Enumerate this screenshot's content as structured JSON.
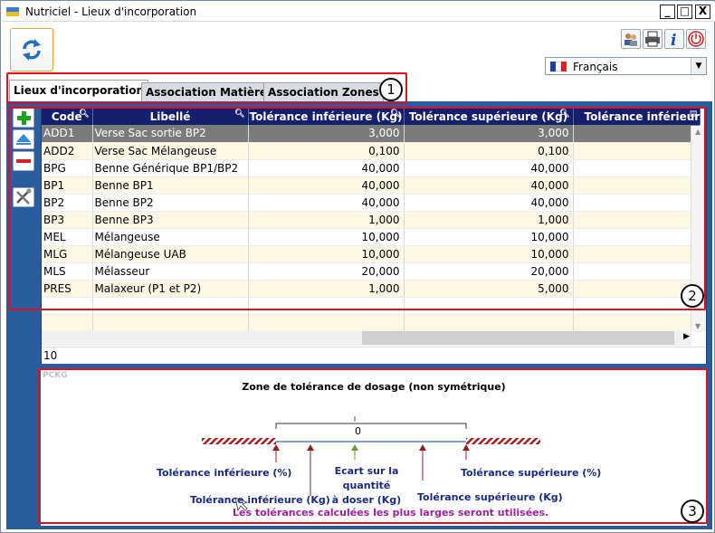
{
  "window": {
    "title": "Nutriciel - Lieux d'incorporation",
    "min_label": "_",
    "max_label": "□",
    "close_label": "X"
  },
  "toolbar": {
    "refresh_icon": "refresh-arrows-icon",
    "users_icon": "users-icon",
    "print_icon": "printer-icon",
    "info_icon": "info-icon",
    "info_label": "i",
    "power_icon": "power-icon"
  },
  "language": {
    "selected": "Français",
    "flag_colors": [
      "#1a3fa0",
      "#ffffff",
      "#e02020"
    ]
  },
  "tabs": [
    {
      "label": "Lieux d'incorporation",
      "active": true
    },
    {
      "label": "Association Matières",
      "active": false
    },
    {
      "label": "Association Zones",
      "active": false
    }
  ],
  "sidebar": {
    "add_icon": "plus-icon",
    "up_icon": "arrow-up-icon",
    "remove_icon": "minus-icon",
    "tools_icon": "tools-icon"
  },
  "grid": {
    "columns": [
      "Code",
      "Libellé",
      "Tolérance inférieure (Kg)",
      "Tolérance supérieure (Kg)",
      "Tolérance inférieur"
    ],
    "rows": [
      {
        "code": "ADD1",
        "libelle": "Verse Sac sortie BP2",
        "tol_inf": "3,000",
        "tol_sup": "3,000"
      },
      {
        "code": "ADD2",
        "libelle": "Verse Sac Mélangeuse",
        "tol_inf": "0,100",
        "tol_sup": "0,100"
      },
      {
        "code": "BPG",
        "libelle": "Benne Générique BP1/BP2",
        "tol_inf": "40,000",
        "tol_sup": "40,000"
      },
      {
        "code": "BP1",
        "libelle": "Benne BP1",
        "tol_inf": "40,000",
        "tol_sup": "40,000"
      },
      {
        "code": "BP2",
        "libelle": "Benne BP2",
        "tol_inf": "40,000",
        "tol_sup": "40,000"
      },
      {
        "code": "BP3",
        "libelle": "Benne BP3",
        "tol_inf": "1,000",
        "tol_sup": "1,000"
      },
      {
        "code": "MEL",
        "libelle": "Mélangeuse",
        "tol_inf": "10,000",
        "tol_sup": "10,000"
      },
      {
        "code": "MLG",
        "libelle": "Mélangeuse UAB",
        "tol_inf": "10,000",
        "tol_sup": "10,000"
      },
      {
        "code": "MLS",
        "libelle": "Mélasseur",
        "tol_inf": "20,000",
        "tol_sup": "20,000"
      },
      {
        "code": "PRES",
        "libelle": "Malaxeur (P1 et P2)",
        "tol_inf": "1,000",
        "tol_sup": "5,000"
      }
    ],
    "selected_row": 0,
    "row_count": "10"
  },
  "diagram": {
    "watermark": "PCKG",
    "title": "Zone de tolérance de dosage (non symétrique)",
    "center_value": "0",
    "label_tol_inf_pct": "Tolérance inférieure (%)",
    "label_tol_inf_kg": "Tolérance inférieure (Kg)",
    "label_ecart_1": "Ecart sur la",
    "label_ecart_2": "quantité",
    "label_ecart_3": "à doser (Kg)",
    "label_tol_sup_kg": "Tolérance supérieure (Kg)",
    "label_tol_sup_pct": "Tolérance supérieure (%)",
    "note": "Les tolérances calculées les plus larges seront utilisées."
  },
  "callouts": [
    "1",
    "2",
    "3"
  ],
  "colors": {
    "panel_blue": "#2a5ca0",
    "header_navy": "#141f6e",
    "selected_row": "#7b7b7b",
    "alt_row": "#fdf8e4",
    "callout_red": "#e01020",
    "note_purple": "#a020a0"
  }
}
